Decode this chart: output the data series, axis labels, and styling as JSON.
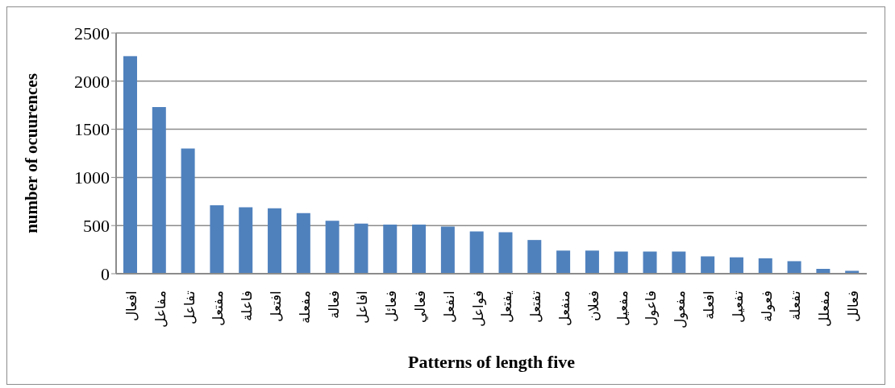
{
  "chart_data": {
    "type": "bar",
    "xlabel": "Patterns of length five",
    "ylabel": "number of ocuurences",
    "categories": [
      "افعال",
      "مفاعل",
      "تفاعل",
      "مفتعل",
      "فاعلة",
      "افتعل",
      "مفعلة",
      "فعالة",
      "افاعل",
      "فعائل",
      "فعالي",
      "انفعل",
      "فواعل",
      "يفتعل",
      "تفتعل",
      "منفعل",
      "فعلان",
      "مفعيل",
      "فاعول",
      "مفعول",
      "افعلة",
      "تفعيل",
      "فعولة",
      "تفعلة",
      "مفعلل",
      "فعالل"
    ],
    "values": [
      2260,
      1730,
      1300,
      710,
      690,
      680,
      630,
      550,
      520,
      510,
      510,
      490,
      440,
      430,
      350,
      240,
      240,
      230,
      230,
      230,
      180,
      170,
      160,
      130,
      50,
      30
    ],
    "color": "#4f81bd",
    "ylim": [
      0,
      2500
    ],
    "yticks": [
      0,
      500,
      1000,
      1500,
      2000,
      2500
    ],
    "grid": "y"
  }
}
